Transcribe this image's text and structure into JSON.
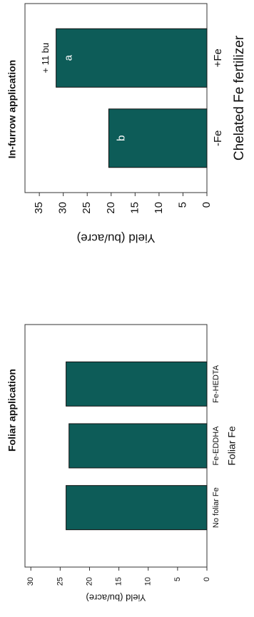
{
  "chart_data": [
    {
      "type": "bar",
      "title": "Foliar application",
      "xlabel": "Foliar Fe",
      "ylabel": "Yield (bu/acre)",
      "categories": [
        "No foliar Fe",
        "Fe-EDDHA",
        "Fe-HEDTA"
      ],
      "values": [
        24,
        23.5,
        24
      ],
      "color": "#0d5c58",
      "ylim": [
        0,
        31
      ],
      "yticks": [
        0,
        5,
        10,
        15,
        20,
        25,
        30
      ]
    },
    {
      "type": "bar",
      "title": "In-furrow application",
      "xlabel": "Chelated Fe fertilizer",
      "ylabel": "Yield (bu/acre)",
      "categories": [
        "-Fe",
        "+Fe"
      ],
      "values": [
        20.5,
        31.5
      ],
      "color": "#0d5c58",
      "letters": [
        "b",
        "a"
      ],
      "annotation": "+ 11 bu",
      "ylim": [
        0,
        38
      ],
      "yticks": [
        0,
        5,
        10,
        15,
        20,
        25,
        30,
        35
      ]
    }
  ]
}
